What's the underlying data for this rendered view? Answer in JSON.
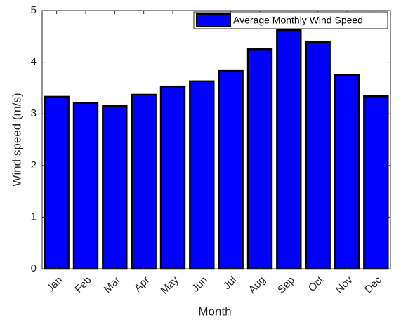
{
  "chart_data": {
    "type": "bar",
    "xlabel": "Month",
    "ylabel": "Wind speed (m/s)",
    "categories": [
      "Jan",
      "Feb",
      "Mar",
      "Apr",
      "May",
      "Jun",
      "Jul",
      "Aug",
      "Sep",
      "Oct",
      "Nov",
      "Dec"
    ],
    "series": [
      {
        "name": "Average Monthly Wind Speed",
        "color": "#0000ff",
        "values": [
          3.33,
          3.21,
          3.15,
          3.37,
          3.53,
          3.63,
          3.83,
          4.25,
          4.62,
          4.39,
          3.75,
          3.34
        ]
      }
    ],
    "ylim": [
      0,
      5
    ],
    "yticks": [
      0,
      1,
      2,
      3,
      4,
      5
    ],
    "legend": "upper right"
  }
}
